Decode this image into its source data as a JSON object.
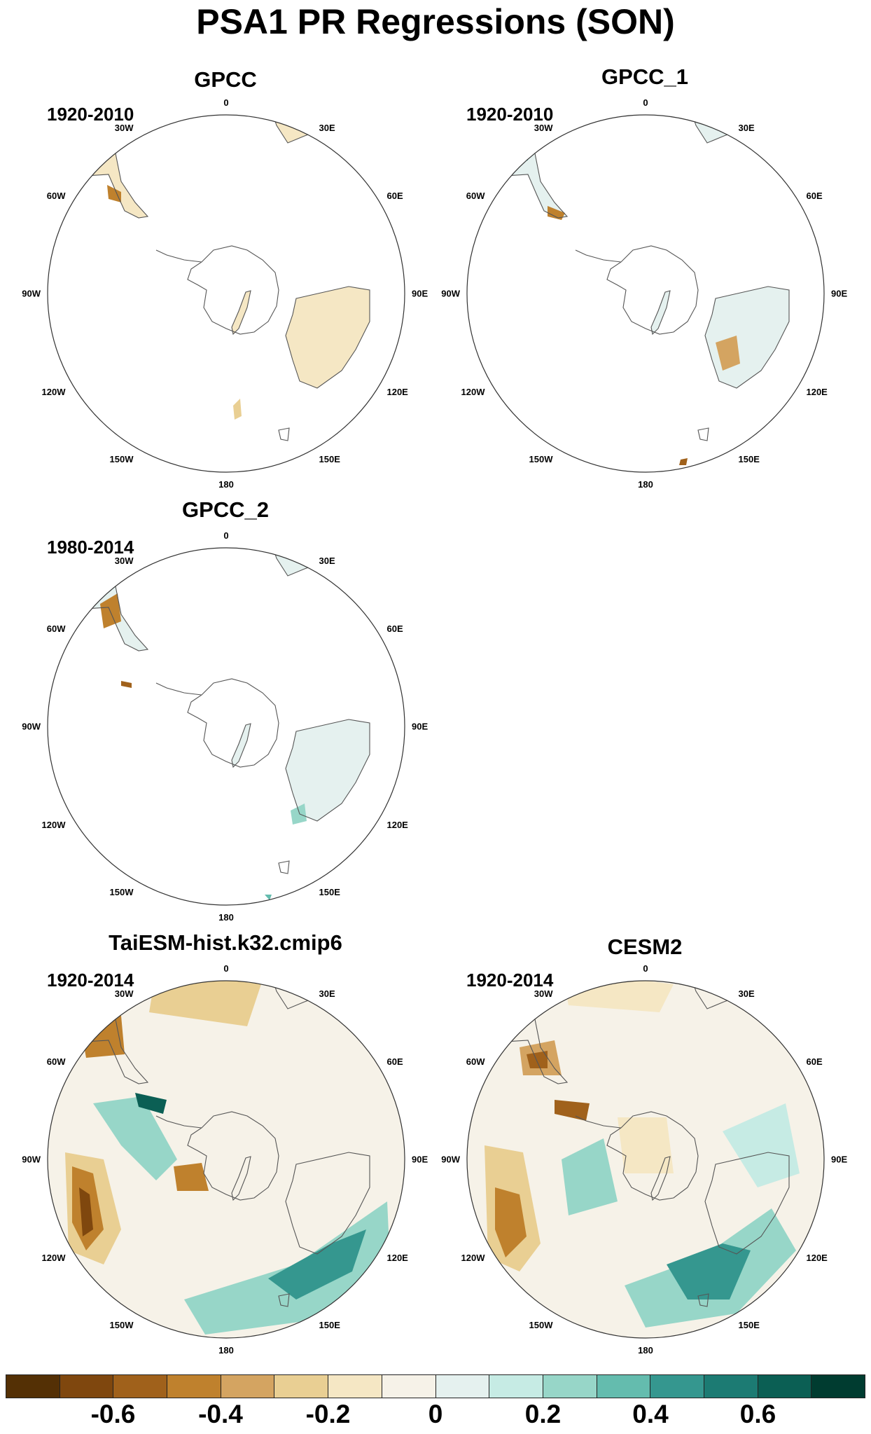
{
  "title": "PSA1 PR Regressions (SON)",
  "lon_labels": [
    "0",
    "30E",
    "60E",
    "90E",
    "120E",
    "150E",
    "180",
    "150W",
    "120W",
    "90W",
    "60W",
    "30W"
  ],
  "panels": [
    {
      "title": "GPCC",
      "period": "1920-2010",
      "data_coverage": "land-only"
    },
    {
      "title": "GPCC_1",
      "period": "1920-2010",
      "data_coverage": "land-only"
    },
    {
      "title": "GPCC_2",
      "period": "1980-2014",
      "data_coverage": "land-only"
    },
    {
      "title": "TaiESM-hist.k32.cmip6",
      "period": "1920-2014",
      "data_coverage": "full-field"
    },
    {
      "title": "CESM2",
      "period": "1920-2014",
      "data_coverage": "full-field"
    }
  ],
  "colorbar": {
    "colors": [
      "#543005",
      "#7f470e",
      "#a0611b",
      "#bf812d",
      "#d4a461",
      "#e9cf93",
      "#f5e7c4",
      "#f6f2e8",
      "#e5f1ef",
      "#c6ebe4",
      "#97d6c8",
      "#64bcae",
      "#35978f",
      "#1c7b73",
      "#0b5f54",
      "#003c30"
    ],
    "tick_labels": [
      "-0.6",
      "-0.4",
      "-0.2",
      "0",
      "0.2",
      "0.4",
      "0.6"
    ]
  }
}
